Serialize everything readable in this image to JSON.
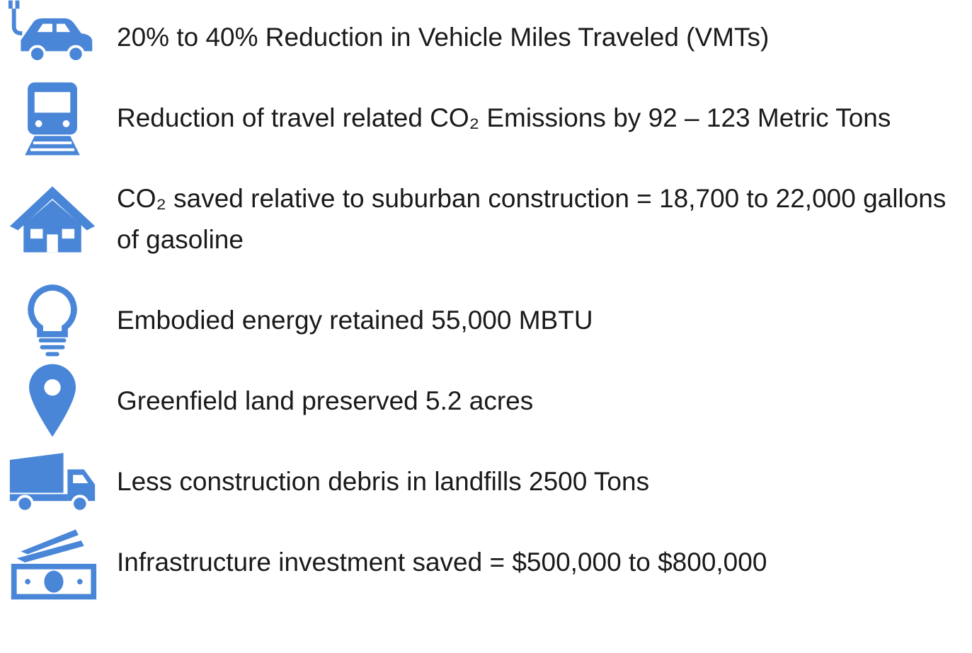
{
  "items": [
    {
      "text": "20% to 40% Reduction in Vehicle Miles Traveled (VMTs)"
    },
    {
      "text": "Reduction of travel related CO₂ Emissions by 92 – 123 Metric Tons"
    },
    {
      "text": "CO₂ saved relative to suburban construction = 18,700 to 22,000 gallons of gasoline"
    },
    {
      "text": "Embodied energy retained 55,000 MBTU"
    },
    {
      "text": "Greenfield land preserved 5.2 acres"
    },
    {
      "text": "Less construction debris in landfills 2500 Tons"
    },
    {
      "text": "Infrastructure investment saved = $500,000 to $800,000"
    }
  ]
}
